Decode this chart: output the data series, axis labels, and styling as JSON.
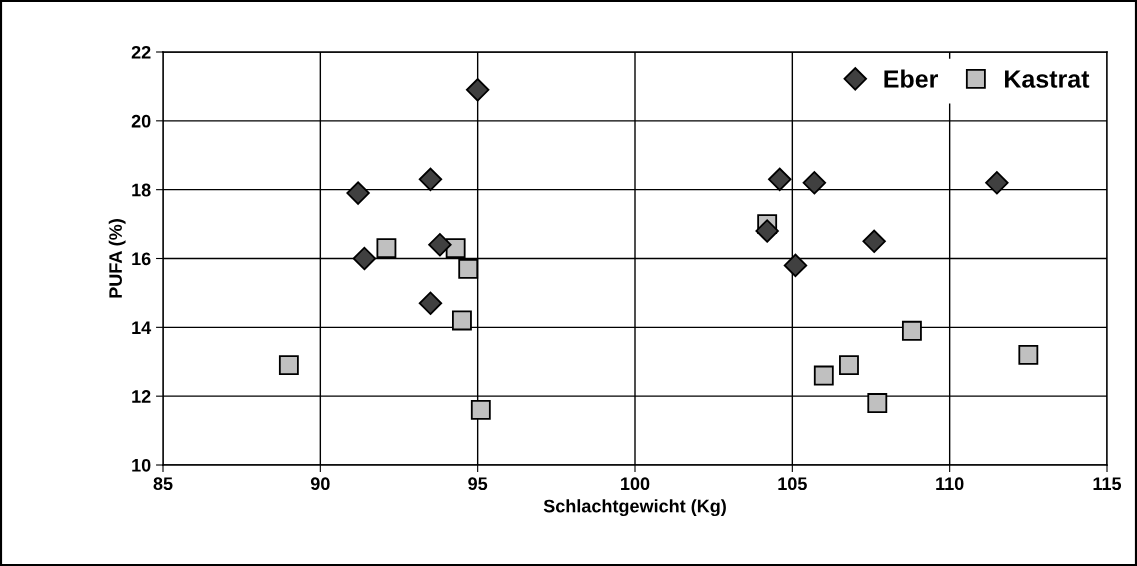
{
  "chart_data": {
    "type": "scatter",
    "xlabel": "Schlachtgewicht (Kg)",
    "ylabel": "PUFA (%)",
    "xlim": [
      85,
      115
    ],
    "xticks": [
      85,
      90,
      95,
      100,
      105,
      110,
      115
    ],
    "ylim": [
      10,
      22
    ],
    "yticks": [
      10,
      12,
      14,
      16,
      18,
      20,
      22
    ],
    "grid": true,
    "legend": "top right",
    "series": [
      {
        "name": "Eber",
        "color": "#404040",
        "marker": "diamond",
        "x": [
          91.2,
          91.4,
          93.5,
          93.8,
          93.5,
          95.0,
          104.2,
          104.6,
          105.1,
          105.7,
          107.6,
          111.5
        ],
        "values": [
          17.9,
          16.0,
          18.3,
          16.4,
          14.7,
          20.9,
          16.8,
          18.3,
          15.8,
          18.2,
          16.5,
          18.2
        ]
      },
      {
        "name": "Kastrat",
        "color": "#c0c0c0",
        "marker": "square",
        "x": [
          89.0,
          92.1,
          94.3,
          94.7,
          94.5,
          95.1,
          104.2,
          106.0,
          106.8,
          107.7,
          108.8,
          112.5
        ],
        "values": [
          12.9,
          16.3,
          16.3,
          15.7,
          14.2,
          11.6,
          17.0,
          12.6,
          12.9,
          11.8,
          13.9,
          13.2
        ]
      }
    ]
  }
}
